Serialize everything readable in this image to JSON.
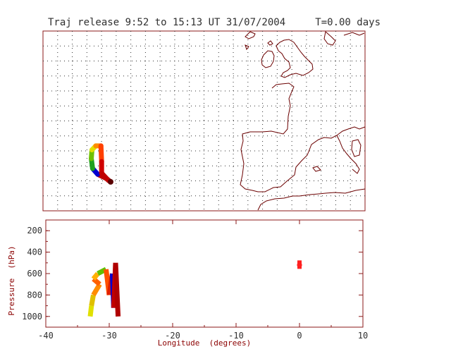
{
  "title": "Traj release 9:52 to 15:13 UT 31/07/2004     T=0.00 days",
  "colors": {
    "frame": "#8b1a1a",
    "coast": "#6b0000",
    "grid": "#303030",
    "text": "#303030"
  },
  "chart_data": [
    {
      "type": "map",
      "description_axes": "longitude-latitude map with dotted graticule",
      "grid": true,
      "coastline": "Western Europe, British Isles, Iberian Peninsula, North Africa",
      "trajectories": [
        {
          "color_scale": "rainbow",
          "points": [
            {
              "lon": -29.5,
              "lat": 35.0,
              "color": "#8b0000"
            },
            {
              "lon": -30.2,
              "lat": 35.6,
              "color": "#c00000"
            },
            {
              "lon": -31.5,
              "lat": 36.3,
              "color": "#0000d0"
            },
            {
              "lon": -32.3,
              "lat": 37.3,
              "color": "#20a020"
            },
            {
              "lon": -32.5,
              "lat": 39.0,
              "color": "#70c000"
            },
            {
              "lon": -32.4,
              "lat": 40.5,
              "color": "#e0e000"
            },
            {
              "lon": -31.8,
              "lat": 41.2,
              "color": "#ff8c00"
            },
            {
              "lon": -31.0,
              "lat": 41.2,
              "color": "#ff4000"
            },
            {
              "lon": -30.9,
              "lat": 38.5,
              "color": "#d00000"
            },
            {
              "lon": -30.9,
              "lat": 36.5,
              "color": "#c00000"
            },
            {
              "lon": -29.8,
              "lat": 35.2,
              "color": "#a00000"
            }
          ]
        }
      ]
    },
    {
      "type": "line",
      "xlabel": "Longitude  (degrees)",
      "ylabel": "Pressure  (hPa)",
      "xlim": [
        -40,
        10
      ],
      "ylim": [
        1100,
        100
      ],
      "xticks": [
        "-40",
        "-30",
        "-20",
        "-10",
        "0",
        "10"
      ],
      "yticks": [
        "200",
        "400",
        "600",
        "800",
        "1000"
      ],
      "series": [
        {
          "points": [
            {
              "lon": -33.0,
              "p": 1000,
              "color": "#e0e000"
            },
            {
              "lon": -32.8,
              "p": 900,
              "color": "#e0c000"
            },
            {
              "lon": -32.5,
              "p": 800,
              "color": "#ff8c00"
            },
            {
              "lon": -31.5,
              "p": 700,
              "color": "#ff6000"
            },
            {
              "lon": -32.5,
              "p": 650,
              "color": "#ffb000"
            },
            {
              "lon": -31.8,
              "p": 600,
              "color": "#60c000"
            },
            {
              "lon": -30.5,
              "p": 560,
              "color": "#ff5000"
            },
            {
              "lon": -30.0,
              "p": 800,
              "color": "#e02000"
            },
            {
              "lon": -29.5,
              "p": 600,
              "color": "#0000d0"
            },
            {
              "lon": -29.3,
              "p": 920,
              "color": "#c00000"
            },
            {
              "lon": -29.0,
              "p": 500,
              "color": "#b00000"
            },
            {
              "lon": -28.6,
              "p": 1000,
              "color": "#8b0000"
            }
          ]
        },
        {
          "points": [
            {
              "lon": 0.0,
              "p": 510,
              "color": "#ff2020"
            },
            {
              "lon": 0.0,
              "p": 530,
              "color": "#ff2020"
            }
          ]
        }
      ]
    }
  ]
}
